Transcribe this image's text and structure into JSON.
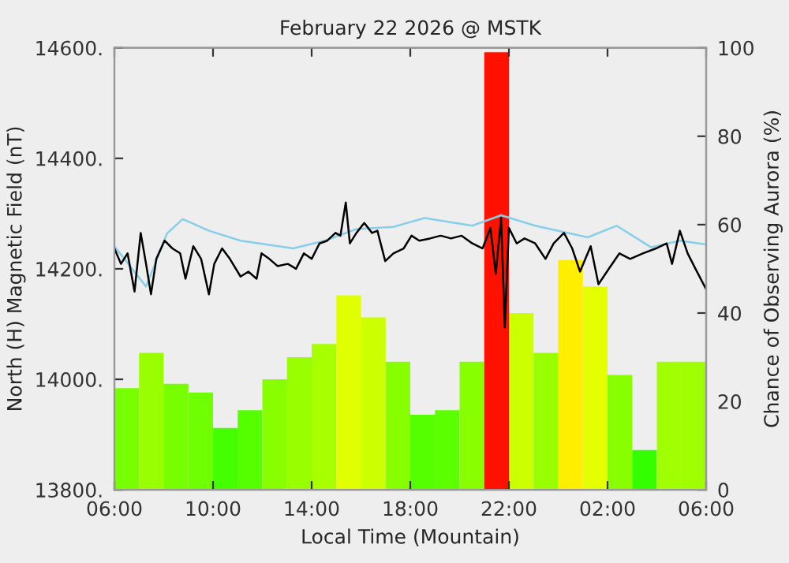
{
  "chart_data": {
    "type": "line",
    "title": "February 22 2026 @ MSTK",
    "xlabel": "Local Time (Mountain)",
    "ylabel": "North (H) Magnetic Field (nT)",
    "y2label": "Chance of Observing Aurora (%)",
    "xlim": [
      "2026-02-22T06:00",
      "2026-02-23T06:00"
    ],
    "xticks": [
      {
        "value": "2026-02-22T06:00",
        "label": "06:00"
      },
      {
        "value": "2026-02-22T10:00",
        "label": "10:00"
      },
      {
        "value": "2026-02-22T14:00",
        "label": "14:00"
      },
      {
        "value": "2026-02-22T18:00",
        "label": "18:00"
      },
      {
        "value": "2026-02-22T22:00",
        "label": "22:00"
      },
      {
        "value": "2026-02-23T02:00",
        "label": "02:00"
      },
      {
        "value": "2026-02-23T06:00",
        "label": "06:00"
      }
    ],
    "ylim": [
      13800,
      14600
    ],
    "yticks": [
      {
        "value": 13800,
        "label": "13800."
      },
      {
        "value": 14000,
        "label": "14000."
      },
      {
        "value": 14200,
        "label": "14200."
      },
      {
        "value": 14400,
        "label": "14400."
      },
      {
        "value": 14600,
        "label": "14600."
      }
    ],
    "y2lim": [
      0,
      100
    ],
    "y2ticks": [
      0,
      20,
      40,
      60,
      80,
      100
    ],
    "grid": false,
    "legend": false,
    "series": [
      {
        "type": "bar",
        "axis": "y2",
        "x": [
          "2026-02-22T06:30",
          "2026-02-22T07:30",
          "2026-02-22T08:30",
          "2026-02-22T09:30",
          "2026-02-22T10:30",
          "2026-02-22T11:30",
          "2026-02-22T12:30",
          "2026-02-22T13:30",
          "2026-02-22T14:30",
          "2026-02-22T15:30",
          "2026-02-22T16:30",
          "2026-02-22T17:30",
          "2026-02-22T18:30",
          "2026-02-22T19:30",
          "2026-02-22T20:30",
          "2026-02-22T21:30",
          "2026-02-22T22:30",
          "2026-02-22T23:30",
          "2026-02-23T00:30",
          "2026-02-23T01:30",
          "2026-02-23T02:30",
          "2026-02-23T03:30",
          "2026-02-23T04:30",
          "2026-02-23T05:30"
        ],
        "values": [
          23,
          31,
          24,
          22,
          14,
          18,
          25,
          30,
          33,
          44,
          39,
          29,
          17,
          18,
          29,
          99,
          40,
          31,
          52,
          46,
          26,
          9,
          29,
          29
        ],
        "colors": [
          "#77ff00",
          "#99ff00",
          "#77ff00",
          "#70ff00",
          "#44ff00",
          "#55ff00",
          "#88ff00",
          "#99ff00",
          "#a8ff00",
          "#e0ff00",
          "#ccff00",
          "#88ff00",
          "#55ff00",
          "#5cff00",
          "#88ff00",
          "#ff1100",
          "#ccff00",
          "#99ff00",
          "#ffee00",
          "#e6ff00",
          "#88ff00",
          "#33ff00",
          "#a0ff00",
          "#a0ff00"
        ]
      },
      {
        "color": "#87ceeb",
        "x": [
          "2026-02-22T06:00",
          "2026-02-22T07:17",
          "2026-02-22T08:08",
          "2026-02-22T08:46",
          "2026-02-22T09:50",
          "2026-02-22T11:07",
          "2026-02-22T13:15",
          "2026-02-22T14:32",
          "2026-02-22T15:49",
          "2026-02-22T17:19",
          "2026-02-22T18:35",
          "2026-02-22T20:31",
          "2026-02-22T21:41",
          "2026-02-22T23:04",
          "2026-02-23T01:12",
          "2026-02-23T02:22",
          "2026-02-23T03:46",
          "2026-02-23T04:56",
          "2026-02-23T06:00"
        ],
        "values": [
          14241,
          14168,
          14264,
          14290,
          14269,
          14251,
          14237,
          14251,
          14272,
          14276,
          14292,
          14278,
          14297,
          14278,
          14257,
          14278,
          14239,
          14251,
          14244
        ]
      },
      {
        "color": "#000000",
        "x": [
          "2026-02-22T06:00",
          "2026-02-22T06:16",
          "2026-02-22T06:32",
          "2026-02-22T06:49",
          "2026-02-22T07:04",
          "2026-02-22T07:17",
          "2026-02-22T07:29",
          "2026-02-22T07:42",
          "2026-02-22T08:02",
          "2026-02-22T08:21",
          "2026-02-22T08:40",
          "2026-02-22T08:53",
          "2026-02-22T09:12",
          "2026-02-22T09:31",
          "2026-02-22T09:50",
          "2026-02-22T10:03",
          "2026-02-22T10:22",
          "2026-02-22T10:41",
          "2026-02-22T11:07",
          "2026-02-22T11:26",
          "2026-02-22T11:46",
          "2026-02-22T11:58",
          "2026-02-22T12:17",
          "2026-02-22T12:37",
          "2026-02-22T13:02",
          "2026-02-22T13:22",
          "2026-02-22T13:41",
          "2026-02-22T14:00",
          "2026-02-22T14:19",
          "2026-02-22T14:38",
          "2026-02-22T14:58",
          "2026-02-22T15:10",
          "2026-02-22T15:23",
          "2026-02-22T15:33",
          "2026-02-22T15:49",
          "2026-02-22T16:08",
          "2026-02-22T16:27",
          "2026-02-22T16:40",
          "2026-02-22T16:59",
          "2026-02-22T17:19",
          "2026-02-22T17:44",
          "2026-02-22T18:03",
          "2026-02-22T18:22",
          "2026-02-22T18:48",
          "2026-02-22T19:14",
          "2026-02-22T19:39",
          "2026-02-22T20:05",
          "2026-02-22T20:31",
          "2026-02-22T20:56",
          "2026-02-22T21:15",
          "2026-02-22T21:28",
          "2026-02-22T21:41",
          "2026-02-22T21:50",
          "2026-02-22T22:00",
          "2026-02-22T22:19",
          "2026-02-22T22:38",
          "2026-02-22T23:04",
          "2026-02-22T23:29",
          "2026-02-22T23:49",
          "2026-02-23T00:14",
          "2026-02-23T00:34",
          "2026-02-23T00:53",
          "2026-02-23T01:19",
          "2026-02-23T01:38",
          "2026-02-23T02:03",
          "2026-02-23T02:29",
          "2026-02-23T02:55",
          "2026-02-23T03:26",
          "2026-02-23T03:58",
          "2026-02-23T04:24",
          "2026-02-23T04:37",
          "2026-02-23T04:56",
          "2026-02-23T05:15",
          "2026-02-23T05:34",
          "2026-02-23T06:00"
        ],
        "values": [
          14237,
          14209,
          14228,
          14159,
          14265,
          14209,
          14154,
          14218,
          14251,
          14237,
          14228,
          14182,
          14241,
          14218,
          14154,
          14209,
          14237,
          14218,
          14186,
          14195,
          14182,
          14228,
          14218,
          14205,
          14209,
          14200,
          14228,
          14218,
          14246,
          14251,
          14265,
          14260,
          14320,
          14246,
          14265,
          14283,
          14265,
          14269,
          14214,
          14228,
          14237,
          14260,
          14251,
          14255,
          14260,
          14255,
          14260,
          14246,
          14237,
          14274,
          14191,
          14292,
          14094,
          14274,
          14246,
          14255,
          14246,
          14218,
          14246,
          14265,
          14237,
          14195,
          14241,
          14172,
          14200,
          14228,
          14218,
          14228,
          14237,
          14246,
          14209,
          14269,
          14228,
          14200,
          14163
        ]
      }
    ]
  }
}
